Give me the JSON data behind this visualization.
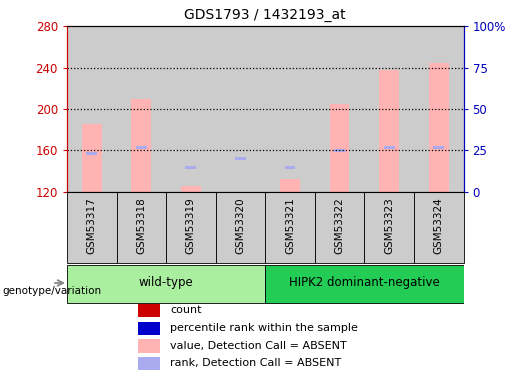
{
  "title": "GDS1793 / 1432193_at",
  "samples": [
    "GSM53317",
    "GSM53318",
    "GSM53319",
    "GSM53320",
    "GSM53321",
    "GSM53322",
    "GSM53323",
    "GSM53324"
  ],
  "values": [
    185,
    210,
    125,
    120,
    132,
    205,
    238,
    244
  ],
  "ranks": [
    157,
    163,
    143,
    152,
    143,
    160,
    163,
    163
  ],
  "ylim_left": [
    120,
    280
  ],
  "ylim_right": [
    0,
    100
  ],
  "yticks_left": [
    120,
    160,
    200,
    240,
    280
  ],
  "yticks_right": [
    0,
    25,
    50,
    75,
    100
  ],
  "ytick_labels_right": [
    "0",
    "25",
    "50",
    "75",
    "100%"
  ],
  "bar_color": "#FFB3B3",
  "rank_color": "#AAAAEE",
  "groups": [
    {
      "label": "wild-type",
      "start": 0,
      "end": 4,
      "color": "#AAEEA0"
    },
    {
      "label": "HIPK2 dominant-negative",
      "start": 4,
      "end": 8,
      "color": "#22CC55"
    }
  ],
  "legend_items": [
    {
      "label": "count",
      "color": "#CC0000"
    },
    {
      "label": "percentile rank within the sample",
      "color": "#0000CC"
    },
    {
      "label": "value, Detection Call = ABSENT",
      "color": "#FFB3B3"
    },
    {
      "label": "rank, Detection Call = ABSENT",
      "color": "#AAAAEE"
    }
  ],
  "genotype_label": "genotype/variation",
  "left_axis_color": "#CC0000",
  "right_axis_color": "#0000BB",
  "background_color": "#FFFFFF",
  "plot_bg_color": "#FFFFFF",
  "tick_area_color": "#CCCCCC",
  "grid_color": "#000000",
  "spine_color": "#000000"
}
